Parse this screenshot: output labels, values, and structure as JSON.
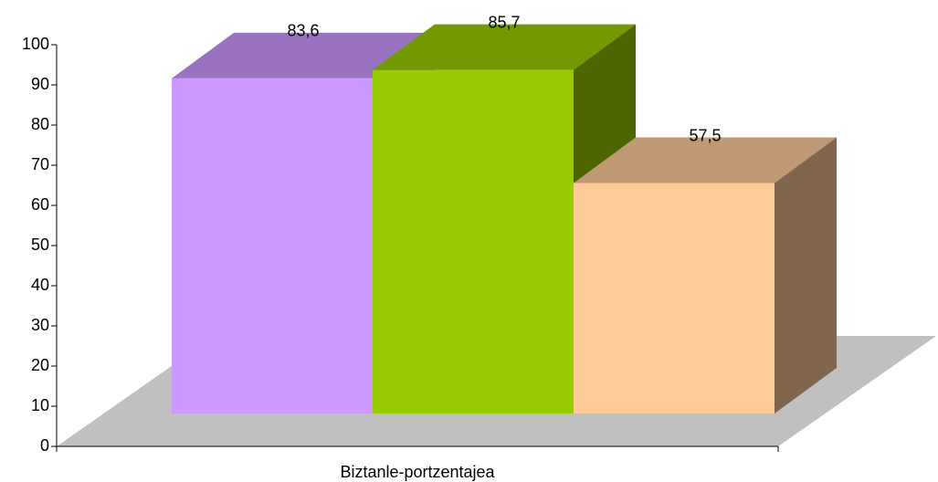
{
  "chart_data": {
    "type": "bar3d",
    "categories": [
      "Biztanle-portzentajea"
    ],
    "series": [
      {
        "color": "#cc99ff",
        "values": [
          83.6
        ],
        "value_labels": [
          "83,6"
        ]
      },
      {
        "color": "#99cc00",
        "values": [
          85.7
        ],
        "value_labels": [
          "85,7"
        ]
      },
      {
        "color": "#ffcc99",
        "values": [
          57.5
        ],
        "value_labels": [
          "57,5"
        ]
      }
    ],
    "ylim": [
      0,
      100
    ],
    "yticks": [
      0,
      10,
      20,
      30,
      40,
      50,
      60,
      70,
      80,
      90,
      100
    ]
  }
}
